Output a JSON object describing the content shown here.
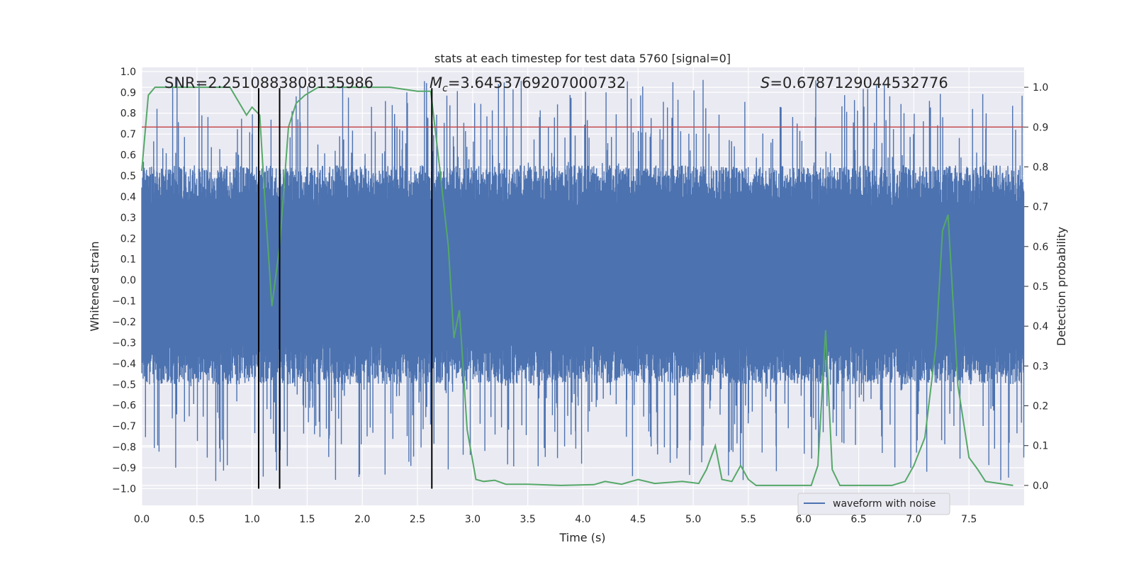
{
  "chart_data": {
    "type": "line",
    "title": "stats at each timestep for test data 5760 [signal=0]",
    "xlabel": "Time (s)",
    "ylabel": "Whitened strain",
    "y2label": "Detection probability",
    "xlim": [
      0,
      8.0
    ],
    "ylim": [
      -1.08,
      1.02
    ],
    "y2lim": [
      -0.05,
      1.05
    ],
    "xticks": [
      "0.0",
      "0.5",
      "1.0",
      "1.5",
      "2.0",
      "2.5",
      "3.0",
      "3.5",
      "4.0",
      "4.5",
      "5.0",
      "5.5",
      "6.0",
      "6.5",
      "7.0",
      "7.5"
    ],
    "yticks": [
      "1.0",
      "0.9",
      "0.8",
      "0.7",
      "0.6",
      "0.5",
      "0.4",
      "0.3",
      "0.2",
      "0.1",
      "0.0",
      "−0.1",
      "−0.2",
      "−0.3",
      "−0.4",
      "−0.5",
      "−0.6",
      "−0.7",
      "−0.8",
      "−0.9",
      "−1.0"
    ],
    "y2ticks": [
      "1.0",
      "0.9",
      "0.8",
      "0.7",
      "0.6",
      "0.5",
      "0.4",
      "0.3",
      "0.2",
      "0.1",
      "0.0"
    ],
    "annotations": {
      "snr": "SNR=2.2510883808135986",
      "mc_symbol": "M",
      "mc_sub": "c",
      "mc_value": "=3.6453769207000732",
      "s_symbol": "S",
      "s_value": "=0.6787129044532776"
    },
    "legend": {
      "label": "waveform with noise",
      "loc": "lower right"
    },
    "threshold": {
      "y2": 0.9,
      "color": "#c44e52"
    },
    "vertical_lines": [
      1.06,
      1.25,
      2.63
    ],
    "vertical_line_range": [
      -1.0,
      0.92
    ],
    "noise_series": {
      "name": "waveform with noise",
      "color": "#4c72b0",
      "core_band": [
        -0.3,
        0.35
      ],
      "typical_peak": 0.85,
      "max_abs": 0.98
    },
    "prob_series": {
      "name": "detection probability",
      "color": "#55a868",
      "x": [
        0.0,
        0.06,
        0.12,
        0.25,
        0.5,
        0.8,
        0.95,
        1.0,
        1.07,
        1.12,
        1.18,
        1.25,
        1.33,
        1.4,
        1.48,
        1.6,
        1.8,
        2.0,
        2.25,
        2.5,
        2.62,
        2.7,
        2.78,
        2.83,
        2.88,
        2.95,
        3.03,
        3.1,
        3.2,
        3.3,
        3.5,
        3.8,
        4.1,
        4.2,
        4.35,
        4.5,
        4.65,
        4.9,
        5.05,
        5.12,
        5.2,
        5.26,
        5.35,
        5.43,
        5.5,
        5.57,
        5.7,
        6.07,
        6.13,
        6.2,
        6.26,
        6.33,
        6.5,
        6.8,
        6.92,
        7.0,
        7.1,
        7.2,
        7.26,
        7.31,
        7.4,
        7.5,
        7.58,
        7.65,
        7.9
      ],
      "y": [
        0.79,
        0.98,
        1.0,
        1.0,
        1.0,
        1.0,
        0.93,
        0.95,
        0.93,
        0.7,
        0.45,
        0.6,
        0.9,
        0.96,
        0.98,
        1.0,
        1.0,
        1.0,
        1.0,
        0.99,
        0.99,
        0.8,
        0.6,
        0.37,
        0.44,
        0.14,
        0.015,
        0.01,
        0.013,
        0.003,
        0.003,
        0.0,
        0.002,
        0.01,
        0.003,
        0.015,
        0.005,
        0.01,
        0.005,
        0.04,
        0.1,
        0.015,
        0.01,
        0.05,
        0.015,
        0.0,
        0.0,
        0.0,
        0.05,
        0.39,
        0.04,
        0.0,
        0.0,
        0.0,
        0.01,
        0.05,
        0.12,
        0.35,
        0.64,
        0.68,
        0.25,
        0.07,
        0.04,
        0.01,
        0.0
      ]
    },
    "grid": true
  }
}
